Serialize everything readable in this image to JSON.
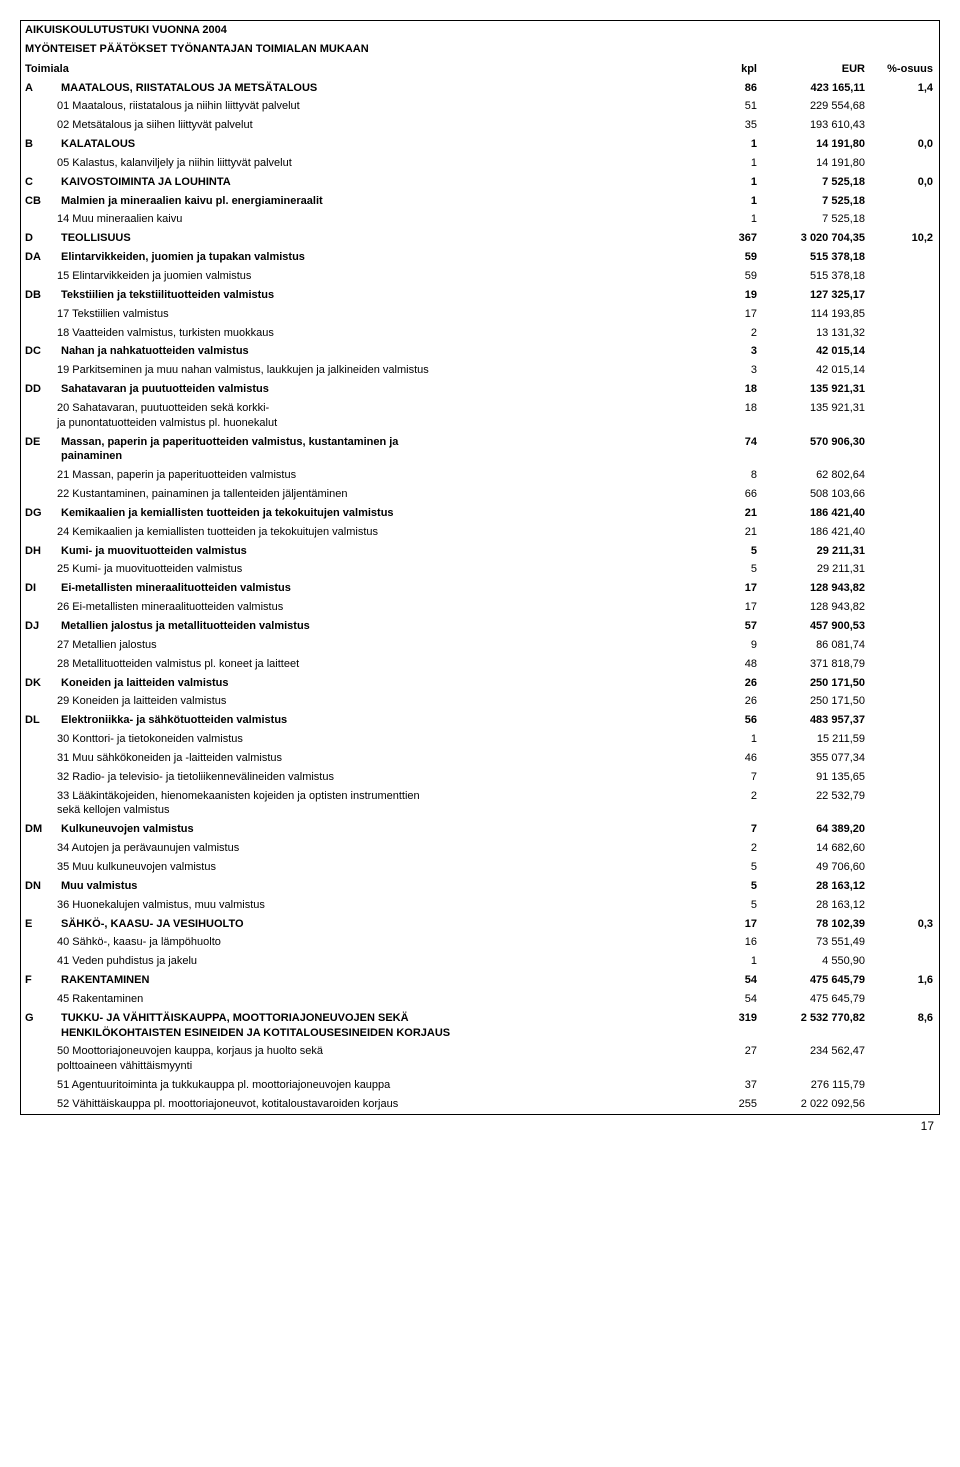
{
  "title1": "AIKUISKOULUTUSTUKI VUONNA 2004",
  "title2": "MYÖNTEISET PÄÄTÖKSET TYÖNANTAJAN TOIMIALAN MUKAAN",
  "columns": {
    "toimiala": "Toimiala",
    "kpl": "kpl",
    "eur": "EUR",
    "pct": "%-osuus"
  },
  "page_number": "17",
  "rows": [
    {
      "code": "A",
      "label": "MAATALOUS, RIISTATALOUS JA METSÄTALOUS",
      "kpl": "86",
      "eur": "423 165,11",
      "pct": "1,4",
      "bold": true
    },
    {
      "code": "",
      "sub": "01",
      "label": "Maatalous, riistatalous ja niihin liittyvät palvelut",
      "kpl": "51",
      "eur": "229 554,68",
      "pct": "",
      "bold": false
    },
    {
      "code": "",
      "sub": "02",
      "label": "Metsätalous ja siihen liittyvät palvelut",
      "kpl": "35",
      "eur": "193 610,43",
      "pct": "",
      "bold": false
    },
    {
      "code": "B",
      "label": "KALATALOUS",
      "kpl": "1",
      "eur": "14 191,80",
      "pct": "0,0",
      "bold": true
    },
    {
      "code": "",
      "sub": "05",
      "label": "Kalastus, kalanviljely ja niihin liittyvät palvelut",
      "kpl": "1",
      "eur": "14 191,80",
      "pct": "",
      "bold": false
    },
    {
      "code": "C",
      "label": "KAIVOSTOIMINTA JA LOUHINTA",
      "kpl": "1",
      "eur": "7 525,18",
      "pct": "0,0",
      "bold": true
    },
    {
      "code": "CB",
      "label": "Malmien ja mineraalien kaivu pl. energiamineraalit",
      "kpl": "1",
      "eur": "7 525,18",
      "pct": "",
      "bold": true
    },
    {
      "code": "",
      "sub": "14",
      "label": "Muu mineraalien kaivu",
      "kpl": "1",
      "eur": "7 525,18",
      "pct": "",
      "bold": false
    },
    {
      "code": "D",
      "label": "TEOLLISUUS",
      "kpl": "367",
      "eur": "3 020 704,35",
      "pct": "10,2",
      "bold": true
    },
    {
      "code": "DA",
      "label": "Elintarvikkeiden, juomien ja tupakan valmistus",
      "kpl": "59",
      "eur": "515 378,18",
      "pct": "",
      "bold": true
    },
    {
      "code": "",
      "sub": "15",
      "label": "Elintarvikkeiden ja juomien valmistus",
      "kpl": "59",
      "eur": "515 378,18",
      "pct": "",
      "bold": false
    },
    {
      "code": "DB",
      "label": "Tekstiilien ja tekstiilituotteiden valmistus",
      "kpl": "19",
      "eur": "127 325,17",
      "pct": "",
      "bold": true
    },
    {
      "code": "",
      "sub": "17",
      "label": "Tekstiilien valmistus",
      "kpl": "17",
      "eur": "114 193,85",
      "pct": "",
      "bold": false
    },
    {
      "code": "",
      "sub": "18",
      "label": "Vaatteiden valmistus, turkisten muokkaus",
      "kpl": "2",
      "eur": "13 131,32",
      "pct": "",
      "bold": false
    },
    {
      "code": "DC",
      "label": "Nahan ja nahkatuotteiden valmistus",
      "kpl": "3",
      "eur": "42 015,14",
      "pct": "",
      "bold": true
    },
    {
      "code": "",
      "sub": "19",
      "label": "Parkitseminen ja muu nahan valmistus, laukkujen ja jalkineiden valmistus",
      "kpl": "3",
      "eur": "42 015,14",
      "pct": "",
      "bold": false
    },
    {
      "code": "DD",
      "label": "Sahatavaran ja puutuotteiden valmistus",
      "kpl": "18",
      "eur": "135 921,31",
      "pct": "",
      "bold": true
    },
    {
      "code": "",
      "sub": "20",
      "label": "Sahatavaran, puutuotteiden sekä korkki-\nja punontatuotteiden valmistus pl. huonekalut",
      "kpl": "18",
      "eur": "135 921,31",
      "pct": "",
      "bold": false,
      "multiline": true
    },
    {
      "code": "DE",
      "label": "Massan, paperin ja paperituotteiden valmistus, kustantaminen ja\npainaminen",
      "kpl": "74",
      "eur": "570 906,30",
      "pct": "",
      "bold": true,
      "multiline": true
    },
    {
      "code": "",
      "sub": "21",
      "label": "Massan, paperin ja paperituotteiden valmistus",
      "kpl": "8",
      "eur": "62 802,64",
      "pct": "",
      "bold": false
    },
    {
      "code": "",
      "sub": "22",
      "label": "Kustantaminen, painaminen ja tallenteiden jäljentäminen",
      "kpl": "66",
      "eur": "508 103,66",
      "pct": "",
      "bold": false
    },
    {
      "code": "DG",
      "label": "Kemikaalien ja kemiallisten tuotteiden ja tekokuitujen valmistus",
      "kpl": "21",
      "eur": "186 421,40",
      "pct": "",
      "bold": true
    },
    {
      "code": "",
      "sub": "24",
      "label": "Kemikaalien ja kemiallisten tuotteiden ja tekokuitujen valmistus",
      "kpl": "21",
      "eur": "186 421,40",
      "pct": "",
      "bold": false
    },
    {
      "code": "DH",
      "label": "Kumi- ja muovituotteiden valmistus",
      "kpl": "5",
      "eur": "29 211,31",
      "pct": "",
      "bold": true
    },
    {
      "code": "",
      "sub": "25",
      "label": "Kumi- ja muovituotteiden valmistus",
      "kpl": "5",
      "eur": "29 211,31",
      "pct": "",
      "bold": false
    },
    {
      "code": "DI",
      "label": "Ei-metallisten mineraalituotteiden valmistus",
      "kpl": "17",
      "eur": "128 943,82",
      "pct": "",
      "bold": true
    },
    {
      "code": "",
      "sub": "26",
      "label": "Ei-metallisten mineraalituotteiden valmistus",
      "kpl": "17",
      "eur": "128 943,82",
      "pct": "",
      "bold": false
    },
    {
      "code": "DJ",
      "label": "Metallien jalostus ja metallituotteiden valmistus",
      "kpl": "57",
      "eur": "457 900,53",
      "pct": "",
      "bold": true
    },
    {
      "code": "",
      "sub": "27",
      "label": "Metallien jalostus",
      "kpl": "9",
      "eur": "86 081,74",
      "pct": "",
      "bold": false
    },
    {
      "code": "",
      "sub": "28",
      "label": "Metallituotteiden valmistus pl. koneet ja laitteet",
      "kpl": "48",
      "eur": "371 818,79",
      "pct": "",
      "bold": false
    },
    {
      "code": "DK",
      "label": "Koneiden ja laitteiden valmistus",
      "kpl": "26",
      "eur": "250 171,50",
      "pct": "",
      "bold": true
    },
    {
      "code": "",
      "sub": "29",
      "label": "Koneiden ja laitteiden valmistus",
      "kpl": "26",
      "eur": "250 171,50",
      "pct": "",
      "bold": false
    },
    {
      "code": "DL",
      "label": "Elektroniikka- ja sähkötuotteiden valmistus",
      "kpl": "56",
      "eur": "483 957,37",
      "pct": "",
      "bold": true
    },
    {
      "code": "",
      "sub": "30",
      "label": "Konttori- ja tietokoneiden valmistus",
      "kpl": "1",
      "eur": "15 211,59",
      "pct": "",
      "bold": false
    },
    {
      "code": "",
      "sub": "31",
      "label": "Muu sähkökoneiden ja -laitteiden valmistus",
      "kpl": "46",
      "eur": "355 077,34",
      "pct": "",
      "bold": false
    },
    {
      "code": "",
      "sub": "32",
      "label": "Radio- ja televisio- ja tietoliikennevälineiden valmistus",
      "kpl": "7",
      "eur": "91 135,65",
      "pct": "",
      "bold": false
    },
    {
      "code": "",
      "sub": "33",
      "label": "Lääkintäkojeiden, hienomekaanisten kojeiden ja optisten instrumenttien\nsekä kellojen valmistus",
      "kpl": "2",
      "eur": "22 532,79",
      "pct": "",
      "bold": false,
      "multiline": true
    },
    {
      "code": "DM",
      "label": "Kulkuneuvojen valmistus",
      "kpl": "7",
      "eur": "64 389,20",
      "pct": "",
      "bold": true
    },
    {
      "code": "",
      "sub": "34",
      "label": "Autojen ja perävaunujen valmistus",
      "kpl": "2",
      "eur": "14 682,60",
      "pct": "",
      "bold": false
    },
    {
      "code": "",
      "sub": "35",
      "label": "Muu kulkuneuvojen valmistus",
      "kpl": "5",
      "eur": "49 706,60",
      "pct": "",
      "bold": false
    },
    {
      "code": "DN",
      "label": "Muu valmistus",
      "kpl": "5",
      "eur": "28 163,12",
      "pct": "",
      "bold": true
    },
    {
      "code": "",
      "sub": "36",
      "label": "Huonekalujen valmistus, muu valmistus",
      "kpl": "5",
      "eur": "28 163,12",
      "pct": "",
      "bold": false
    },
    {
      "code": "E",
      "label": "SÄHKÖ-, KAASU- JA VESIHUOLTO",
      "kpl": "17",
      "eur": "78 102,39",
      "pct": "0,3",
      "bold": true
    },
    {
      "code": "",
      "sub": "40",
      "label": "Sähkö-, kaasu- ja lämpöhuolto",
      "kpl": "16",
      "eur": "73 551,49",
      "pct": "",
      "bold": false
    },
    {
      "code": "",
      "sub": "41",
      "label": "Veden puhdistus ja jakelu",
      "kpl": "1",
      "eur": "4 550,90",
      "pct": "",
      "bold": false
    },
    {
      "code": "F",
      "label": "RAKENTAMINEN",
      "kpl": "54",
      "eur": "475 645,79",
      "pct": "1,6",
      "bold": true
    },
    {
      "code": "",
      "sub": "45",
      "label": "Rakentaminen",
      "kpl": "54",
      "eur": "475 645,79",
      "pct": "",
      "bold": false
    },
    {
      "code": "G",
      "label": "TUKKU- JA VÄHITTÄISKAUPPA, MOOTTORIAJONEUVOJEN SEKÄ\nHENKILÖKOHTAISTEN ESINEIDEN JA KOTITALOUSESINEIDEN KORJAUS",
      "kpl": "319",
      "eur": "2 532 770,82",
      "pct": "8,6",
      "bold": true,
      "multiline": true
    },
    {
      "code": "",
      "sub": "50",
      "label": "Moottoriajoneuvojen kauppa, korjaus ja huolto sekä\npolttoaineen vähittäismyynti",
      "kpl": "27",
      "eur": "234 562,47",
      "pct": "",
      "bold": false,
      "multiline": true
    },
    {
      "code": "",
      "sub": "51",
      "label": "Agentuuritoiminta ja tukkukauppa pl. moottoriajoneuvojen kauppa",
      "kpl": "37",
      "eur": "276 115,79",
      "pct": "",
      "bold": false
    },
    {
      "code": "",
      "sub": "52",
      "label": "Vähittäiskauppa pl. moottoriajoneuvot, kotitaloustavaroiden korjaus",
      "kpl": "255",
      "eur": "2 022 092,56",
      "pct": "",
      "bold": false
    }
  ]
}
